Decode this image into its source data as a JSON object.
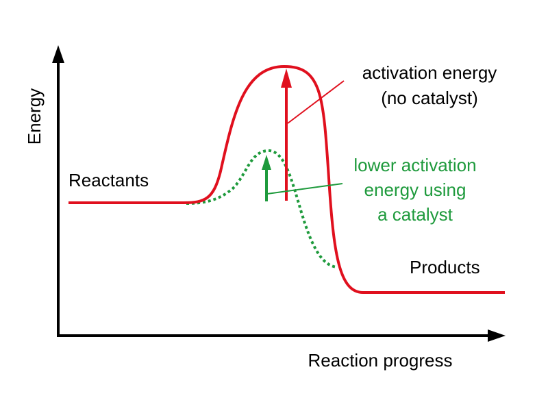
{
  "axes": {
    "y_label": "Energy",
    "x_label": "Reaction progress"
  },
  "labels": {
    "reactants": "Reactants",
    "products": "Products"
  },
  "annotations": {
    "no_catalyst": {
      "lines": [
        "activation energy",
        "(no catalyst)"
      ]
    },
    "catalyst": {
      "lines": [
        "lower activation",
        "energy using",
        "a catalyst"
      ]
    }
  }
}
